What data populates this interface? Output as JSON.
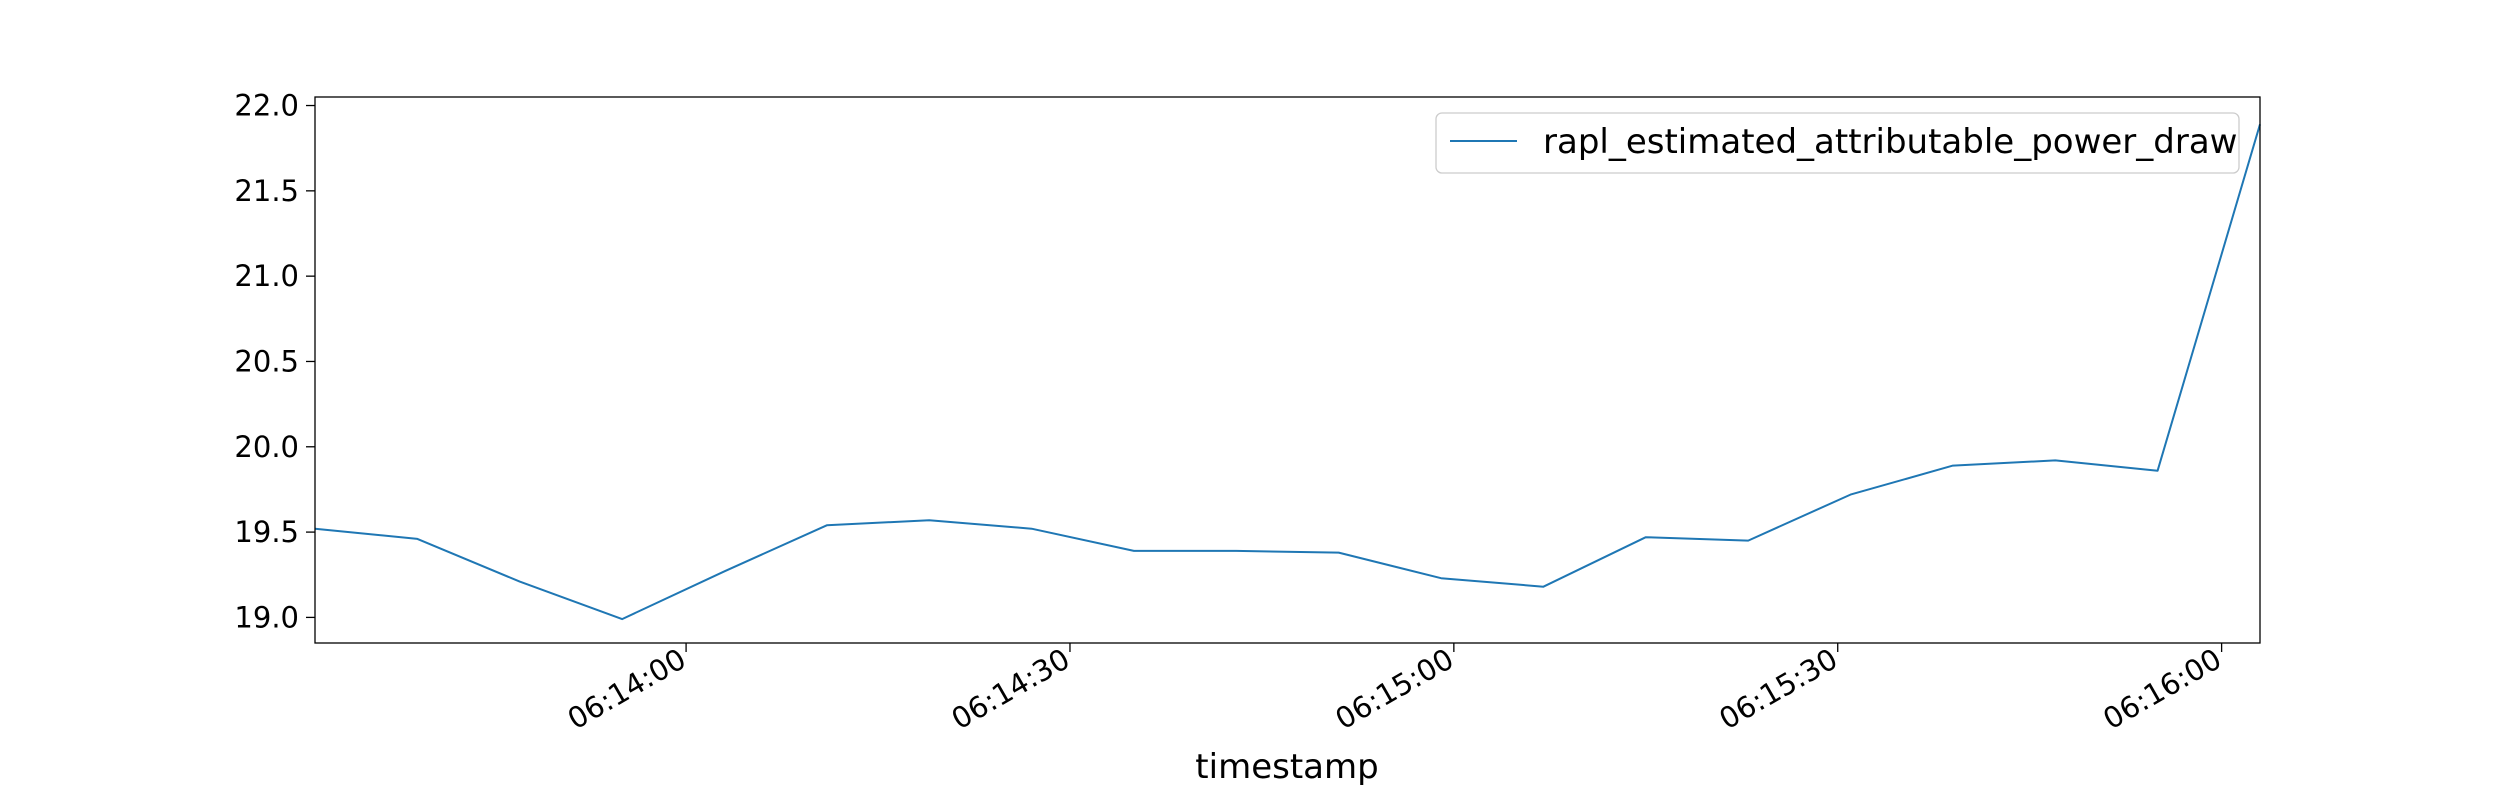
{
  "chart_data": {
    "type": "line",
    "title": "",
    "xlabel": "timestamp",
    "ylabel": "",
    "ylim": [
      18.85,
      22.05
    ],
    "xlim": [
      "06:13:31",
      "06:16:03"
    ],
    "grid": false,
    "legend": {
      "location": "upper right",
      "entries": [
        "rapl_estimated_attributable_power_draw"
      ]
    },
    "series_color": "#1f77b4",
    "x_ticks": [
      "06:14:00",
      "06:14:30",
      "06:15:00",
      "06:15:30",
      "06:16:00"
    ],
    "y_ticks": [
      "19.0",
      "19.5",
      "20.0",
      "20.5",
      "21.0",
      "21.5",
      "22.0"
    ],
    "series": [
      {
        "name": "rapl_estimated_attributable_power_draw",
        "x": [
          "06:13:31",
          "06:13:39",
          "06:13:47",
          "06:13:55",
          "06:14:03",
          "06:14:11",
          "06:14:19",
          "06:14:27",
          "06:14:35",
          "06:14:43",
          "06:14:51",
          "06:14:59",
          "06:15:07",
          "06:15:15",
          "06:15:23",
          "06:15:31",
          "06:15:39",
          "06:15:47",
          "06:15:55",
          "06:16:03"
        ],
        "values": [
          19.52,
          19.46,
          19.21,
          18.99,
          19.27,
          19.54,
          19.57,
          19.52,
          19.39,
          19.39,
          19.38,
          19.23,
          19.18,
          19.47,
          19.45,
          19.72,
          19.89,
          19.92,
          19.86,
          21.89
        ]
      }
    ]
  }
}
